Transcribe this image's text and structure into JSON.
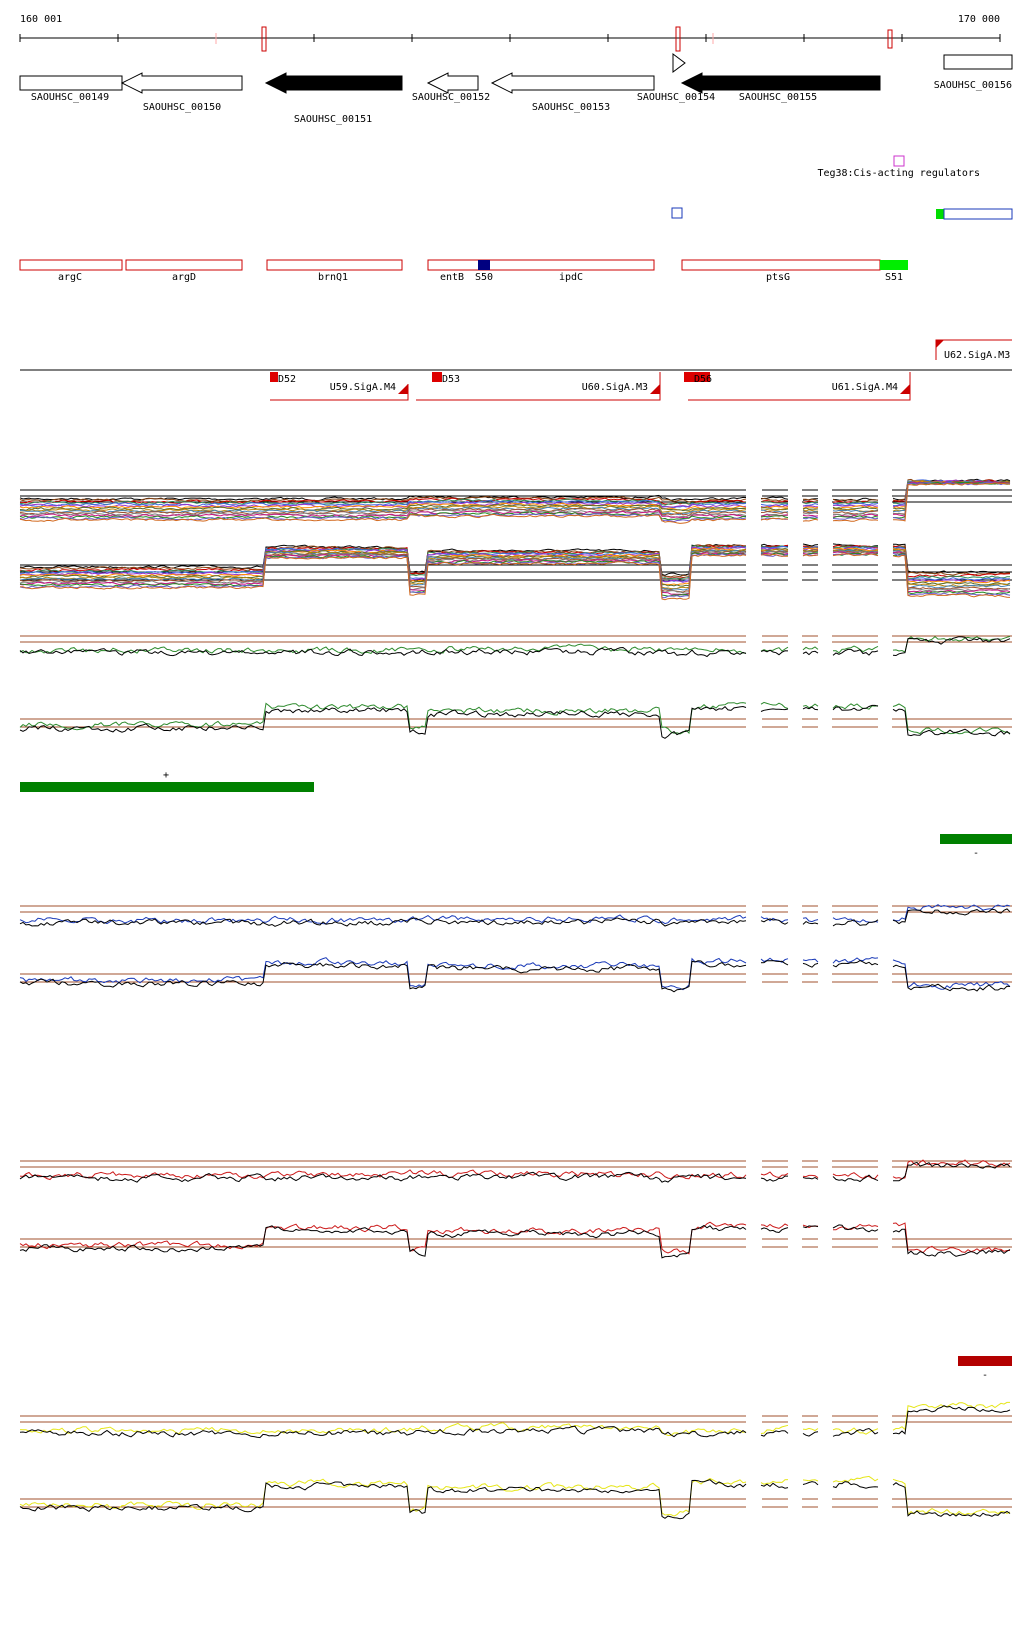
{
  "ruler": {
    "start_label": "160 001",
    "end_label": "170 000"
  },
  "genes": [
    {
      "name": "SAOUHSC_00149",
      "strand": "+",
      "style": "open"
    },
    {
      "name": "SAOUHSC_00150",
      "strand": "-",
      "style": "open"
    },
    {
      "name": "SAOUHSC_00151",
      "strand": "-",
      "style": "filled"
    },
    {
      "name": "SAOUHSC_00152",
      "strand": "-",
      "style": "open"
    },
    {
      "name": "SAOUHSC_00153",
      "strand": "-",
      "style": "open"
    },
    {
      "name": "SAOUHSC_00154",
      "strand": "+",
      "style": "open"
    },
    {
      "name": "SAOUHSC_00155",
      "strand": "-",
      "style": "filled"
    },
    {
      "name": "SAOUHSC_00156",
      "strand": "+",
      "style": "open"
    }
  ],
  "regulator": {
    "label": "Teg38:Cis-acting regulators",
    "color": "#cc33cc"
  },
  "annotations": [
    {
      "name": "argC"
    },
    {
      "name": "argD"
    },
    {
      "name": "brnQ1"
    },
    {
      "name": "entB"
    },
    {
      "name": "S50"
    },
    {
      "name": "ipdC"
    },
    {
      "name": "ptsG"
    },
    {
      "name": "S51"
    }
  ],
  "operons": {
    "up": [
      {
        "label": "U62.SigA.M3"
      }
    ],
    "down": [
      {
        "label": "U59.SigA.M4",
        "tag": "D52"
      },
      {
        "label": "U60.SigA.M3",
        "tag": "D53"
      },
      {
        "label": "U61.SigA.M4",
        "tag": "D56"
      }
    ]
  },
  "condition_bars": [
    {
      "label": "+",
      "color": "#008000"
    },
    {
      "label": "-",
      "color": "#008000"
    },
    {
      "label": "-",
      "color": "#b30000"
    }
  ],
  "colors": {
    "multi": [
      "#000000",
      "#8b4513",
      "#cc0000",
      "#2e8b57",
      "#4169e1",
      "#9932cc",
      "#ff8c00",
      "#556b2f",
      "#b8860b",
      "#4682b4",
      "#a0522d",
      "#808080",
      "#c71585",
      "#228b22",
      "#6a5acd",
      "#d2691e"
    ],
    "green": "#2e8b2e",
    "blue": "#1a3ab8",
    "red": "#cc1a1a",
    "yellow": "#e6e619",
    "threshold": "#a0522d"
  }
}
